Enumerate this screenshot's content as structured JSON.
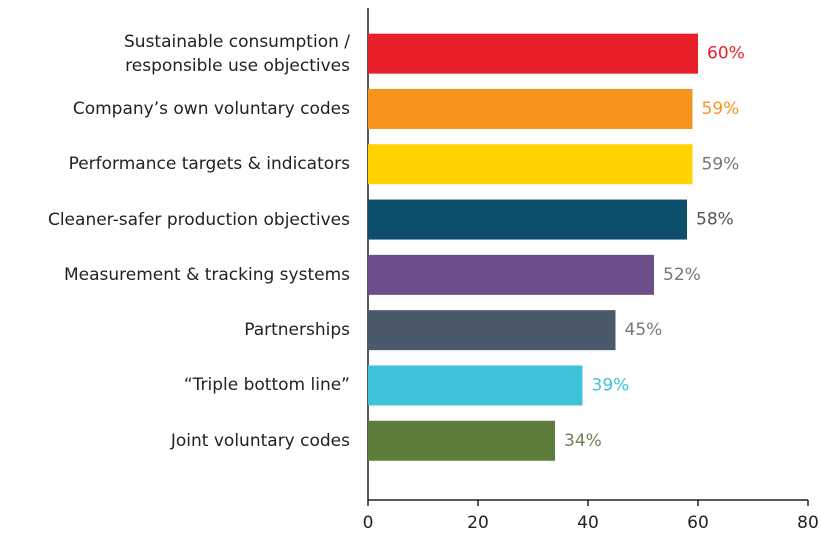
{
  "chart_data": {
    "type": "bar",
    "orientation": "horizontal",
    "categories": [
      "Sustainable consumption /\nresponsible use objectives",
      "Company’s own voluntary codes",
      "Performance targets & indicators",
      "Cleaner-safer production objectives",
      "Measurement & tracking systems",
      "Partnerships",
      "“Triple bottom line”",
      "Joint voluntary codes"
    ],
    "values": [
      60,
      59,
      59,
      58,
      52,
      45,
      39,
      34
    ],
    "value_labels": [
      "60%",
      "59%",
      "59%",
      "58%",
      "52%",
      "45%",
      "39%",
      "34%"
    ],
    "colors": [
      "#e8202a",
      "#f7941d",
      "#ffd200",
      "#0b4f6c",
      "#6c4f8a",
      "#4a5a6a",
      "#3fc1d9",
      "#5f7d3a"
    ],
    "value_label_colors": [
      "#e8202a",
      "#f7941d",
      "#777777",
      "#555555",
      "#777777",
      "#777777",
      "#3fc1d9",
      "#6f7f5a"
    ],
    "xlim": [
      0,
      80
    ],
    "xticks": [
      0,
      20,
      40,
      60,
      80
    ]
  }
}
